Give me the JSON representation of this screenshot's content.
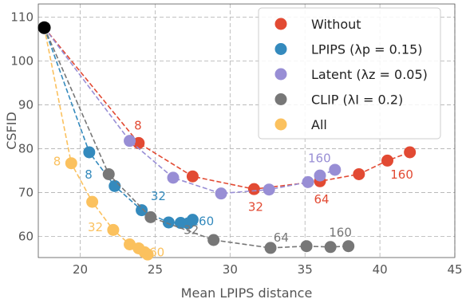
{
  "chart_data": {
    "type": "line",
    "title": "",
    "xlabel": "Mean LPIPS distance",
    "ylabel": "CSFID",
    "xlim": [
      17.2,
      45
    ],
    "ylim": [
      55.2,
      113
    ],
    "xticks": [
      "20",
      "25",
      "30",
      "35",
      "40",
      "45"
    ],
    "yticks": [
      "60",
      "70",
      "80",
      "90",
      "100",
      "110"
    ],
    "grid": true,
    "legend_position": "top-right",
    "origin_point": {
      "x": 17.6,
      "y": 107.6,
      "color": "#000000"
    },
    "series": [
      {
        "name": "Without",
        "color": "#e24a33",
        "x": [
          17.6,
          23.9,
          27.5,
          31.6,
          36.0,
          38.6,
          40.5,
          42.0
        ],
        "y": [
          107.6,
          81.3,
          73.7,
          70.8,
          72.6,
          74.2,
          77.3,
          79.2
        ]
      },
      {
        "name": "LPIPS (λp = 0.15)",
        "color": "#348abd",
        "x": [
          17.6,
          20.6,
          22.3,
          24.1,
          25.9,
          26.7,
          27.2,
          27.5
        ],
        "y": [
          107.6,
          79.2,
          71.5,
          66.0,
          63.2,
          63.1,
          63.0,
          63.8
        ]
      },
      {
        "name": "Latent (λz = 0.05)",
        "color": "#988ed5",
        "x": [
          17.6,
          23.3,
          26.2,
          29.4,
          32.6,
          35.2,
          36.0,
          37.0
        ],
        "y": [
          107.6,
          81.8,
          73.4,
          69.8,
          70.7,
          72.4,
          73.9,
          75.2
        ]
      },
      {
        "name": "CLIP (λI = 0.2)",
        "color": "#777777",
        "x": [
          17.6,
          21.9,
          24.7,
          28.9,
          32.7,
          35.1,
          36.7,
          37.9
        ],
        "y": [
          107.6,
          74.2,
          64.4,
          59.2,
          57.4,
          57.8,
          57.6,
          57.8
        ]
      },
      {
        "name": "All",
        "color": "#fbc15e",
        "x": [
          17.6,
          19.4,
          20.8,
          22.2,
          23.3,
          23.9,
          24.3,
          24.5
        ],
        "y": [
          107.6,
          76.7,
          67.9,
          61.5,
          58.2,
          57.3,
          56.4,
          55.9
        ]
      }
    ],
    "annotations": [
      {
        "text": "8",
        "x": 23.6,
        "y": 84.4,
        "color": "#e24a33",
        "anchor": "start"
      },
      {
        "text": "32",
        "x": 31.2,
        "y": 65.8,
        "color": "#e24a33",
        "anchor": "start"
      },
      {
        "text": "64",
        "x": 35.6,
        "y": 67.6,
        "color": "#e24a33",
        "anchor": "start"
      },
      {
        "text": "160",
        "x": 40.7,
        "y": 73.2,
        "color": "#e24a33",
        "anchor": "start"
      },
      {
        "text": "8",
        "x": 20.3,
        "y": 73.2,
        "color": "#348abd",
        "anchor": "start"
      },
      {
        "text": "32",
        "x": 24.7,
        "y": 68.3,
        "color": "#348abd",
        "anchor": "start"
      },
      {
        "text": "160",
        "x": 27.4,
        "y": 62.6,
        "color": "#348abd",
        "anchor": "start"
      },
      {
        "text": "160",
        "x": 35.2,
        "y": 76.9,
        "color": "#988ed5",
        "anchor": "start"
      },
      {
        "text": "32",
        "x": 26.9,
        "y": 60.6,
        "color": "#777777",
        "anchor": "start"
      },
      {
        "text": "64",
        "x": 32.9,
        "y": 58.8,
        "color": "#777777",
        "anchor": "start"
      },
      {
        "text": "160",
        "x": 36.6,
        "y": 60.0,
        "color": "#777777",
        "anchor": "start"
      },
      {
        "text": "8",
        "x": 18.2,
        "y": 76.2,
        "color": "#fbc15e",
        "anchor": "start"
      },
      {
        "text": "32",
        "x": 20.5,
        "y": 61.2,
        "color": "#fbc15e",
        "anchor": "start"
      },
      {
        "text": "160",
        "x": 24.1,
        "y": 55.5,
        "color": "#fbc15e",
        "anchor": "start"
      }
    ]
  }
}
